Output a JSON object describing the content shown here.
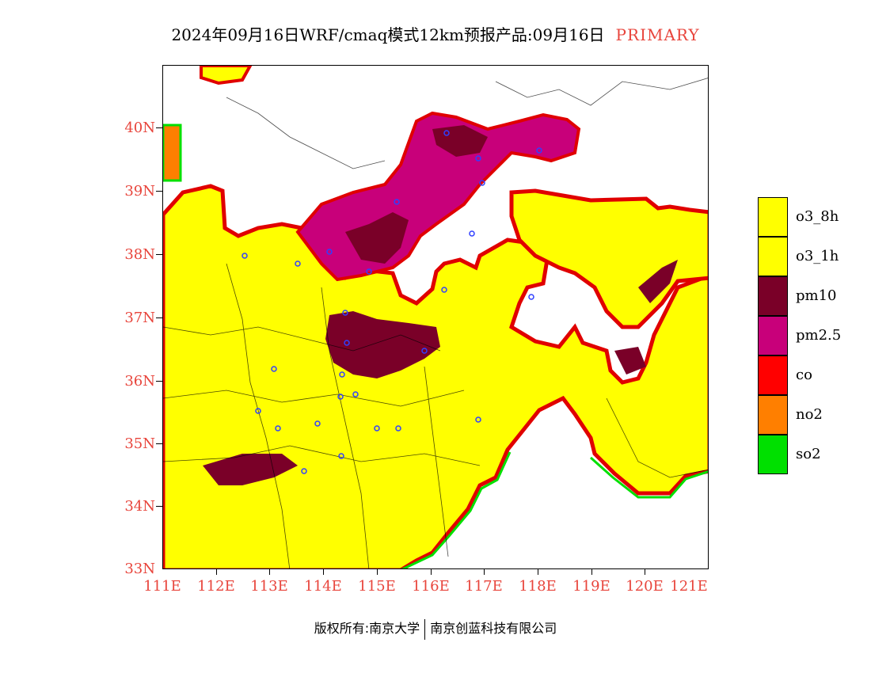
{
  "title": "2024年09月16日WRF/cmaq模式12km预报产品:09月16日",
  "tag": "PRIMARY",
  "lat_labels": [
    "40N",
    "39N",
    "38N",
    "37N",
    "36N",
    "35N",
    "34N",
    "33N"
  ],
  "lon_labels": [
    "111E",
    "112E",
    "113E",
    "114E",
    "115E",
    "116E",
    "117E",
    "118E",
    "119E",
    "120E",
    "121E"
  ],
  "legend": [
    {
      "label": "o3_8h",
      "color": "#ffff00"
    },
    {
      "label": "o3_1h",
      "color": "#ffff00"
    },
    {
      "label": "pm10",
      "color": "#7a0028"
    },
    {
      "label": "pm2.5",
      "color": "#c8007a"
    },
    {
      "label": "co",
      "color": "#ff0000"
    },
    {
      "label": "no2",
      "color": "#ff7f00"
    },
    {
      "label": "so2",
      "color": "#00e000"
    }
  ],
  "footer": {
    "left": "版权所有:南京大学",
    "right": "南京创蓝科技有限公司"
  }
}
